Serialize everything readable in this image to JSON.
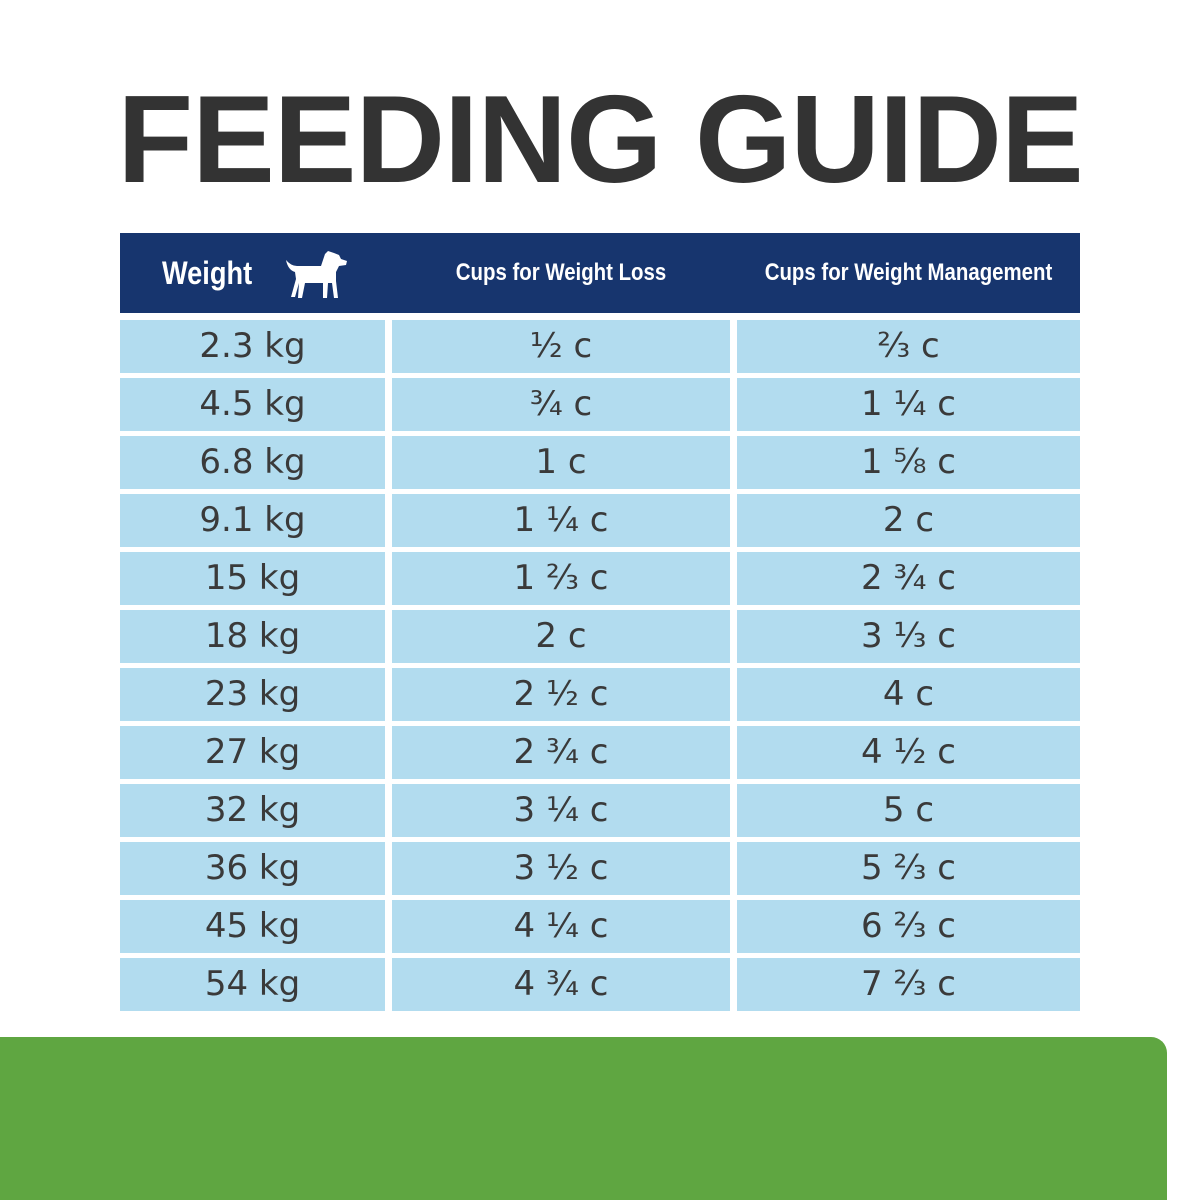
{
  "header": {
    "title": "FEEDING GUIDE"
  },
  "table": {
    "columns": [
      "Weight",
      "Cups for Weight Loss",
      "Cups for Weight Management"
    ],
    "rows": [
      [
        "2.3 kg",
        "½ c",
        "⅔ c"
      ],
      [
        "4.5 kg",
        "¾ c",
        "1 ¼ c"
      ],
      [
        "6.8 kg",
        "1 c",
        "1 ⅝ c"
      ],
      [
        "9.1 kg",
        "1 ¼ c",
        "2 c"
      ],
      [
        "15 kg",
        "1 ⅔ c",
        "2 ¾ c"
      ],
      [
        "18 kg",
        "2 c",
        "3 ⅓ c"
      ],
      [
        "23 kg",
        "2 ½ c",
        "4 c"
      ],
      [
        "27 kg",
        "2 ¾ c",
        "4 ½ c"
      ],
      [
        "32 kg",
        "3 ¼ c",
        "5 c"
      ],
      [
        "36 kg",
        "3 ½ c",
        "5 ⅔ c"
      ],
      [
        "45 kg",
        "4 ¼ c",
        "6 ⅔ c"
      ],
      [
        "54 kg",
        "4 ¾ c",
        "7 ⅔ c"
      ]
    ]
  }
}
